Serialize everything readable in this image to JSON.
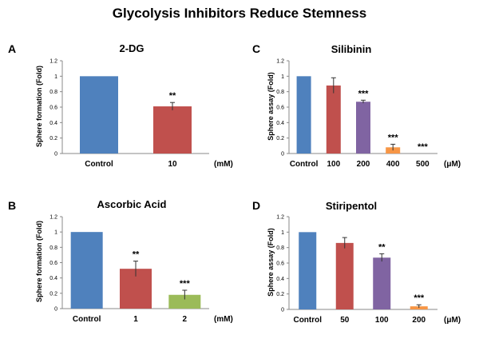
{
  "figure": {
    "title": "Glycolysis Inhibitors Reduce Stemness"
  },
  "chart_data": [
    {
      "panel": "A",
      "title": "2-DG",
      "type": "bar",
      "ylabel": "Sphere formation (Fold)",
      "xunit": "(mM)",
      "ylim": [
        0,
        1.2
      ],
      "yticks": [
        "0",
        "0.2",
        "0.4",
        "0.6",
        "0.8",
        "1",
        "1.2"
      ],
      "categories": [
        "Control",
        "10"
      ],
      "values": [
        1.0,
        0.61
      ],
      "errors": [
        0.0,
        0.05
      ],
      "significance": [
        "",
        "**"
      ],
      "colors": [
        "#4f81bd",
        "#c0504d"
      ]
    },
    {
      "panel": "B",
      "title": "Ascorbic Acid",
      "type": "bar",
      "ylabel": "Sphere formation (Fold)",
      "xunit": "(mM)",
      "ylim": [
        0,
        1.2
      ],
      "yticks": [
        "0",
        "0.2",
        "0.4",
        "0.6",
        "0.8",
        "1",
        "1.2"
      ],
      "categories": [
        "Control",
        "1",
        "2"
      ],
      "values": [
        1.0,
        0.52,
        0.18
      ],
      "errors": [
        0.0,
        0.1,
        0.06
      ],
      "significance": [
        "",
        "**",
        "***"
      ],
      "colors": [
        "#4f81bd",
        "#c0504d",
        "#9bbb59"
      ]
    },
    {
      "panel": "C",
      "title": "Silibinin",
      "type": "bar",
      "ylabel": "Sphere assay (Fold)",
      "xunit": "(μM)",
      "ylim": [
        0,
        1.2
      ],
      "yticks": [
        "0",
        "0.2",
        "0.4",
        "0.6",
        "0.8",
        "1",
        "1.2"
      ],
      "categories": [
        "Control",
        "100",
        "200",
        "400",
        "500"
      ],
      "values": [
        1.0,
        0.88,
        0.67,
        0.08,
        0.0
      ],
      "errors": [
        0.0,
        0.1,
        0.02,
        0.04,
        0.0
      ],
      "significance": [
        "",
        "",
        "***",
        "***",
        "***"
      ],
      "colors": [
        "#4f81bd",
        "#c0504d",
        "#8064a2",
        "#f79646",
        "#f79646"
      ]
    },
    {
      "panel": "D",
      "title": "Stiripentol",
      "type": "bar",
      "ylabel": "Sphere assay (Fold)",
      "xunit": "(μM)",
      "ylim": [
        0,
        1.2
      ],
      "yticks": [
        "0",
        "0.2",
        "0.4",
        "0.6",
        "0.8",
        "1",
        "1.2"
      ],
      "categories": [
        "Control",
        "50",
        "100",
        "200"
      ],
      "values": [
        1.0,
        0.86,
        0.67,
        0.04
      ],
      "errors": [
        0.0,
        0.07,
        0.05,
        0.02
      ],
      "significance": [
        "",
        "",
        "**",
        "***"
      ],
      "colors": [
        "#4f81bd",
        "#c0504d",
        "#8064a2",
        "#f79646"
      ]
    }
  ]
}
